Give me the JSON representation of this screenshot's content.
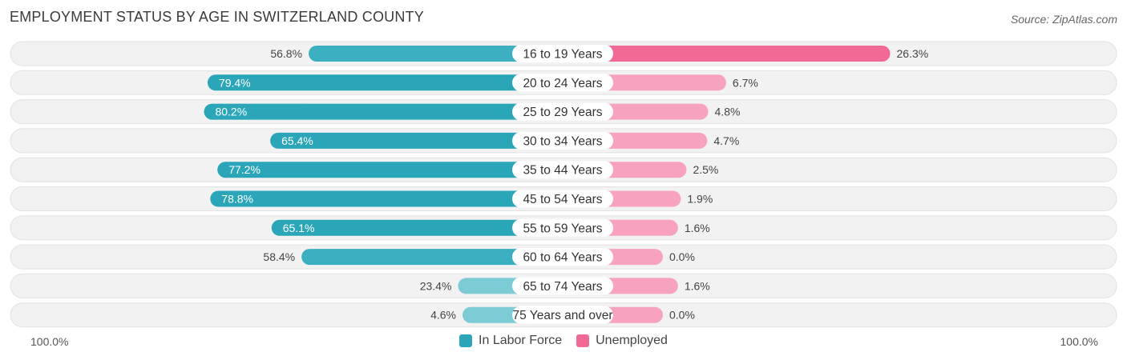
{
  "title": "EMPLOYMENT STATUS BY AGE IN SWITZERLAND COUNTY",
  "source": "Source: ZipAtlas.com",
  "axis": {
    "left_label": "100.0%",
    "right_label": "100.0%"
  },
  "legend": [
    {
      "label": "In Labor Force",
      "color": "#2aa6b8"
    },
    {
      "label": "Unemployed",
      "color": "#f06a95"
    }
  ],
  "chart_data": {
    "type": "bar",
    "orientation": "horizontal-diverging",
    "title": "EMPLOYMENT STATUS BY AGE IN SWITZERLAND COUNTY",
    "categories": [
      "16 to 19 Years",
      "20 to 24 Years",
      "25 to 29 Years",
      "30 to 34 Years",
      "35 to 44 Years",
      "45 to 54 Years",
      "55 to 59 Years",
      "60 to 64 Years",
      "65 to 74 Years",
      "75 Years and over"
    ],
    "series": [
      {
        "name": "In Labor Force",
        "values": [
          56.8,
          79.4,
          80.2,
          65.4,
          77.2,
          78.8,
          65.1,
          58.4,
          23.4,
          4.6
        ],
        "labels": [
          "56.8%",
          "79.4%",
          "80.2%",
          "65.4%",
          "77.2%",
          "78.8%",
          "65.1%",
          "58.4%",
          "23.4%",
          "4.6%"
        ]
      },
      {
        "name": "Unemployed",
        "values": [
          26.3,
          6.7,
          4.8,
          4.7,
          2.5,
          1.9,
          1.6,
          0.0,
          1.6,
          0.0
        ],
        "labels": [
          "26.3%",
          "6.7%",
          "4.8%",
          "4.7%",
          "2.5%",
          "1.9%",
          "1.6%",
          "0.0%",
          "1.6%",
          "0.0%"
        ]
      }
    ],
    "xlim": [
      -100,
      100
    ],
    "legend_position": "bottom-center"
  }
}
